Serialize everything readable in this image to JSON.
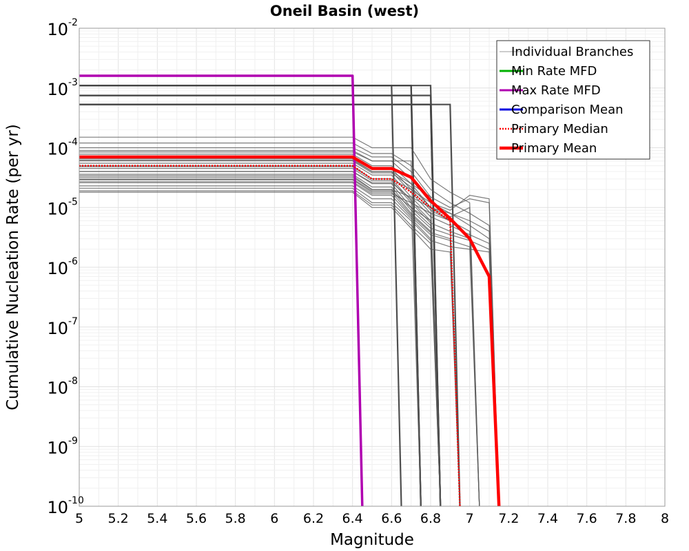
{
  "chart_data": {
    "type": "line",
    "title": "Oneil Basin (west)",
    "xlabel": "Magnitude",
    "ylabel": "Cumulative Nucleation Rate (per yr)",
    "xlim": [
      5,
      8
    ],
    "ylim": [
      1e-10,
      0.01
    ],
    "yscale": "log",
    "grid": true,
    "legend_position": "top-right",
    "x_ticks": [
      "5",
      "5.2",
      "5.4",
      "5.6",
      "5.8",
      "6",
      "6.2",
      "6.4",
      "6.6",
      "6.8",
      "7",
      "7.2",
      "7.4",
      "7.6",
      "7.8",
      "8"
    ],
    "y_ticks": [
      {
        "base": "10",
        "exp": "-10",
        "value": 1e-10
      },
      {
        "base": "10",
        "exp": "-9",
        "value": 1e-09
      },
      {
        "base": "10",
        "exp": "-8",
        "value": 1e-08
      },
      {
        "base": "10",
        "exp": "-7",
        "value": 1e-07
      },
      {
        "base": "10",
        "exp": "-6",
        "value": 1e-06
      },
      {
        "base": "10",
        "exp": "-5",
        "value": 1e-05
      },
      {
        "base": "10",
        "exp": "-4",
        "value": 0.0001
      },
      {
        "base": "10",
        "exp": "-3",
        "value": 0.001
      },
      {
        "base": "10",
        "exp": "-2",
        "value": 0.01
      }
    ],
    "series": [
      {
        "name": "Individual Branches",
        "color": "#7f7f7f",
        "style": "thin",
        "x": [],
        "y": []
      },
      {
        "name": "Min Rate MFD",
        "color": "#00b000",
        "style": "solid",
        "x": [],
        "y": []
      },
      {
        "name": "Max Rate MFD",
        "color": "#b000b0",
        "style": "solid",
        "x": [
          5.0,
          6.4,
          6.45
        ],
        "y": [
          0.0016,
          0.0016,
          1e-10
        ]
      },
      {
        "name": "Comparison Mean",
        "color": "#0000e0",
        "style": "solid",
        "x": [],
        "y": []
      },
      {
        "name": "Primary Median",
        "color": "#ff0000",
        "style": "dotted",
        "x": [
          5.0,
          6.4,
          6.5,
          6.6,
          6.7,
          6.8,
          6.9,
          6.95
        ],
        "y": [
          5e-05,
          5e-05,
          3e-05,
          3e-05,
          1.8e-05,
          1e-05,
          6e-06,
          1e-10
        ]
      },
      {
        "name": "Primary Mean",
        "color": "#ff0000",
        "style": "thick",
        "x": [
          5.0,
          6.4,
          6.5,
          6.6,
          6.7,
          6.8,
          6.9,
          7.0,
          7.1,
          7.15
        ],
        "y": [
          7e-05,
          7e-05,
          4.5e-05,
          4.5e-05,
          3.2e-05,
          1.3e-05,
          6.5e-06,
          3e-06,
          7e-07,
          1e-10
        ]
      }
    ],
    "branches": [
      {
        "rate": 0.0011,
        "drop": 6.7,
        "tail": [],
        "end": 6.75
      },
      {
        "rate": 0.0011,
        "drop": 6.7,
        "tail": [],
        "end": 6.75
      },
      {
        "rate": 0.0011,
        "drop": 6.8,
        "tail": [],
        "end": 6.85
      },
      {
        "rate": 0.00075,
        "drop": 6.7,
        "tail": [],
        "end": 6.75
      },
      {
        "rate": 0.00075,
        "drop": 6.8,
        "tail": [],
        "end": 6.85
      },
      {
        "rate": 0.00053,
        "drop": 6.8,
        "tail": [],
        "end": 6.85
      },
      {
        "rate": 0.00053,
        "drop": 6.8,
        "tail": [],
        "end": 6.85
      },
      {
        "rate": 0.00053,
        "drop": 6.9,
        "tail": [],
        "end": 6.95
      },
      {
        "rate": 0.0011,
        "drop": 6.6,
        "tail": [],
        "end": 6.65
      },
      {
        "rate": 0.00015,
        "drop": 6.4,
        "tail": [
          6.5,
          0.0001,
          6.6,
          0.0001,
          6.7,
          0.0001,
          6.8,
          3e-05,
          6.9,
          1.8e-05,
          7.0,
          1.2e-05
        ],
        "end": 7.05
      },
      {
        "rate": 0.00012,
        "drop": 6.4,
        "tail": [
          6.5,
          8e-05,
          6.6,
          8e-05,
          6.7,
          5e-05,
          6.8,
          2e-05,
          6.9,
          1.2e-05,
          7.0,
          8e-06,
          7.1,
          5e-06
        ],
        "end": 7.15
      },
      {
        "rate": 0.0001,
        "drop": 6.4,
        "tail": [
          6.5,
          7e-05,
          6.6,
          7e-05,
          6.7,
          4e-05,
          6.8,
          1.5e-05
        ],
        "end": 6.85
      },
      {
        "rate": 8.5e-05,
        "drop": 6.4,
        "tail": [
          6.5,
          6e-05,
          6.6,
          6e-05,
          6.7,
          3e-05,
          6.8,
          1.2e-05,
          6.9,
          8e-06,
          7.0,
          5e-06,
          7.1,
          3e-06
        ],
        "end": 7.15
      },
      {
        "rate": 7.8e-05,
        "drop": 6.4,
        "tail": [
          6.5,
          5e-05,
          6.6,
          5e-05,
          6.7,
          2.5e-05,
          6.8,
          1e-05,
          6.9,
          6e-06
        ],
        "end": 6.95
      },
      {
        "rate": 7e-05,
        "drop": 6.4,
        "tail": [
          6.5,
          4.5e-05,
          6.6,
          4.5e-05,
          6.7,
          2e-05,
          6.8,
          9e-06,
          6.9,
          6e-06,
          7.0,
          4e-06
        ],
        "end": 7.05
      },
      {
        "rate": 6.2e-05,
        "drop": 6.4,
        "tail": [
          6.5,
          4e-05,
          6.6,
          4e-05,
          6.7,
          1.8e-05,
          6.8,
          8e-06
        ],
        "end": 6.85
      },
      {
        "rate": 5.5e-05,
        "drop": 6.4,
        "tail": [
          6.5,
          3.5e-05,
          6.6,
          3.5e-05,
          6.7,
          1.5e-05,
          6.8,
          7e-06,
          6.9,
          5e-06,
          7.0,
          3.5e-06,
          7.1,
          2.5e-06
        ],
        "end": 7.15
      },
      {
        "rate": 5e-05,
        "drop": 6.4,
        "tail": [
          6.5,
          3e-05,
          6.6,
          3e-05,
          6.7,
          1.3e-05,
          6.8,
          6e-06
        ],
        "end": 6.85
      },
      {
        "rate": 4.5e-05,
        "drop": 6.4,
        "tail": [
          6.5,
          2.8e-05,
          6.6,
          2.8e-05,
          6.7,
          1.2e-05,
          6.8,
          5.5e-06,
          6.9,
          4e-06,
          7.0,
          3e-06
        ],
        "end": 7.05
      },
      {
        "rate": 4e-05,
        "drop": 6.4,
        "tail": [
          6.5,
          2.5e-05,
          6.6,
          2.5e-05,
          6.7,
          1e-05,
          6.8,
          5e-06
        ],
        "end": 6.85
      },
      {
        "rate": 3.6e-05,
        "drop": 6.4,
        "tail": [
          6.5,
          2.2e-05,
          6.6,
          2.2e-05,
          6.7,
          9e-06,
          6.8,
          4.5e-06,
          6.9,
          3.5e-06,
          7.0,
          2.8e-06,
          7.1,
          2e-06
        ],
        "end": 7.15
      },
      {
        "rate": 3.2e-05,
        "drop": 6.4,
        "tail": [
          6.5,
          2e-05,
          6.6,
          2e-05,
          6.7,
          8e-06,
          6.8,
          4e-06
        ],
        "end": 6.85
      },
      {
        "rate": 2.9e-05,
        "drop": 6.4,
        "tail": [
          6.5,
          1.8e-05,
          6.6,
          1.8e-05,
          6.7,
          7.5e-06,
          6.8,
          3.8e-06,
          6.9,
          3e-06
        ],
        "end": 6.95
      },
      {
        "rate": 2.6e-05,
        "drop": 6.4,
        "tail": [
          6.5,
          1.6e-05,
          6.6,
          1.6e-05,
          6.7,
          7e-06,
          6.8,
          3.5e-06,
          6.9,
          2.8e-06,
          7.0,
          2.2e-06
        ],
        "end": 7.05
      },
      {
        "rate": 2.3e-05,
        "drop": 6.4,
        "tail": [
          6.5,
          1.4e-05,
          6.6,
          1.4e-05,
          6.7,
          6.5e-06,
          6.8,
          3e-06
        ],
        "end": 6.85
      },
      {
        "rate": 2.1e-05,
        "drop": 6.4,
        "tail": [
          6.5,
          1.2e-05,
          6.6,
          1.2e-05,
          6.7,
          6e-06,
          6.8,
          2.8e-06,
          6.9,
          2.2e-06,
          7.0,
          2e-06,
          7.1,
          1.8e-06
        ],
        "end": 7.15
      },
      {
        "rate": 1.9e-05,
        "drop": 6.4,
        "tail": [
          6.5,
          1.1e-05,
          6.6,
          1.1e-05,
          6.7,
          5e-06,
          6.8,
          2.5e-06
        ],
        "end": 6.85
      },
      {
        "rate": 1.8e-05,
        "drop": 6.4,
        "tail": [
          6.5,
          1e-05,
          6.6,
          1e-05,
          6.7,
          4.5e-06,
          6.8,
          2e-06,
          6.9,
          1.8e-06
        ],
        "end": 6.95
      },
      {
        "rate": 9e-05,
        "drop": 6.4,
        "tail": [
          6.5,
          6e-05,
          6.6,
          6e-05,
          6.7,
          6e-05
        ],
        "end": 6.75
      },
      {
        "rate": 6.5e-05,
        "drop": 6.4,
        "tail": [
          6.5,
          4e-05,
          6.6,
          4e-05,
          6.7,
          2.5e-05,
          6.8,
          1.5e-05,
          6.9,
          1e-05,
          7.0,
          1.4e-05,
          7.1,
          1.2e-05
        ],
        "end": 7.15
      },
      {
        "rate": 4.8e-05,
        "drop": 6.4,
        "tail": [
          6.5,
          3e-05,
          6.6,
          3e-05,
          6.7,
          2e-05,
          6.8,
          1.2e-05,
          6.9,
          9e-06,
          7.0,
          1.6e-05,
          7.1,
          1.4e-05
        ],
        "end": 7.15
      },
      {
        "rate": 3.4e-05,
        "drop": 6.4,
        "tail": [
          6.5,
          2e-05,
          6.6,
          2e-05,
          6.7,
          1.5e-05,
          6.8,
          1e-05,
          6.9,
          7e-06,
          7.0,
          1e-05
        ],
        "end": 7.05
      },
      {
        "rate": 2.7e-05,
        "drop": 6.4,
        "tail": [
          6.5,
          1.7e-05,
          6.6,
          1.7e-05,
          6.7,
          1.2e-05,
          6.8,
          8e-06,
          6.9,
          6e-06
        ],
        "end": 6.95
      },
      {
        "rate": 3e-05,
        "drop": 6.4,
        "tail": [
          6.5,
          1.9e-05,
          6.6,
          1.9e-05,
          6.7,
          1e-05,
          6.8,
          6e-06
        ],
        "end": 6.85
      },
      {
        "rate": 6e-05,
        "drop": 6.4,
        "tail": [
          6.5,
          3.8e-05,
          6.6,
          3.8e-05,
          6.7,
          2.2e-05,
          6.8,
          1e-05,
          6.9,
          8e-06,
          7.0,
          6e-06,
          7.1,
          4e-06
        ],
        "end": 7.15
      },
      {
        "rate": 4e-05,
        "drop": 6.4,
        "tail": [
          6.5,
          2.6e-05,
          6.6,
          2.6e-05,
          6.7,
          1.4e-05
        ],
        "end": 6.75
      }
    ],
    "legend_entries": [
      {
        "label": "Individual Branches",
        "color": "#9a9a9a",
        "style": "thin"
      },
      {
        "label": "Min Rate MFD",
        "color": "#00b000",
        "style": "solid"
      },
      {
        "label": "Max Rate MFD",
        "color": "#b000b0",
        "style": "solid"
      },
      {
        "label": "Comparison Mean",
        "color": "#0000e0",
        "style": "solid"
      },
      {
        "label": " Primary Median",
        "color": "#ff0000",
        "style": "dotted"
      },
      {
        "label": "Primary Mean",
        "color": "#ff0000",
        "style": "thick"
      }
    ]
  }
}
